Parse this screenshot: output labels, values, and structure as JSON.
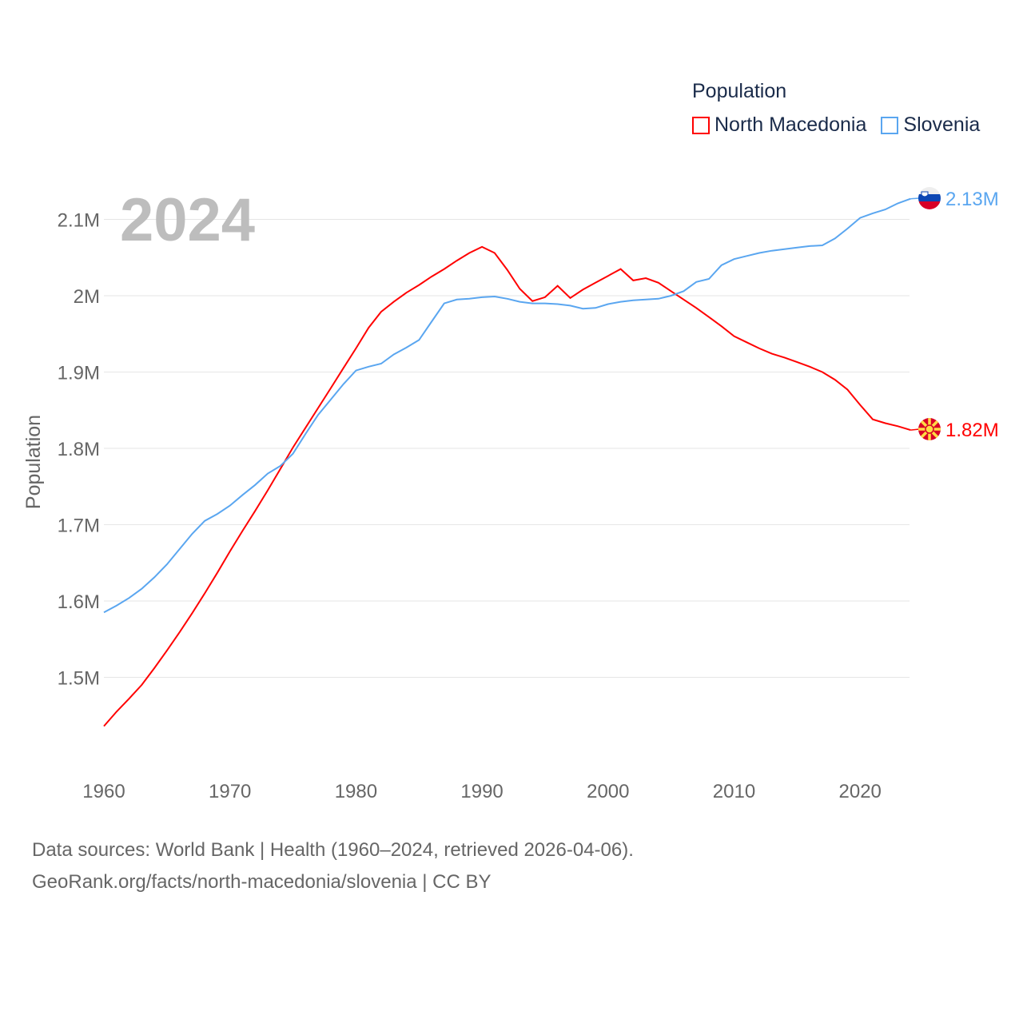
{
  "chart_data": {
    "type": "line",
    "title": "Population",
    "xlabel": "",
    "ylabel": "Population",
    "xlim": [
      1960,
      2024
    ],
    "ylim": [
      1.4,
      2.15
    ],
    "y_unit": "millions",
    "grid": true,
    "legend_position": "top-right",
    "x_ticks": [
      1960,
      1970,
      1980,
      1990,
      2000,
      2010,
      2020
    ],
    "y_ticks": [
      1.5,
      1.6,
      1.7,
      1.8,
      1.9,
      2.0,
      2.1
    ],
    "y_tick_labels": [
      "1.5M",
      "1.6M",
      "1.7M",
      "1.8M",
      "1.9M",
      "2M",
      "2.1M"
    ],
    "current_year_label": "2024",
    "x": [
      1960,
      1961,
      1962,
      1963,
      1964,
      1965,
      1966,
      1967,
      1968,
      1969,
      1970,
      1971,
      1972,
      1973,
      1974,
      1975,
      1976,
      1977,
      1978,
      1979,
      1980,
      1981,
      1982,
      1983,
      1984,
      1985,
      1986,
      1987,
      1988,
      1989,
      1990,
      1991,
      1992,
      1993,
      1994,
      1995,
      1996,
      1997,
      1998,
      1999,
      2000,
      2001,
      2002,
      2003,
      2004,
      2005,
      2006,
      2007,
      2008,
      2009,
      2010,
      2011,
      2012,
      2013,
      2014,
      2015,
      2016,
      2017,
      2018,
      2019,
      2020,
      2021,
      2022,
      2023,
      2024
    ],
    "series": [
      {
        "name": "North Macedonia",
        "color": "#ff0000",
        "end_label": "1.82M",
        "values": [
          1.436,
          1.455,
          1.472,
          1.49,
          1.512,
          1.535,
          1.559,
          1.584,
          1.61,
          1.637,
          1.665,
          1.692,
          1.718,
          1.745,
          1.773,
          1.801,
          1.827,
          1.853,
          1.879,
          1.905,
          1.931,
          1.958,
          1.979,
          1.992,
          2.004,
          2.014,
          2.025,
          2.035,
          2.046,
          2.056,
          2.064,
          2.056,
          2.034,
          2.009,
          1.993,
          1.998,
          2.013,
          1.997,
          2.008,
          2.017,
          2.026,
          2.035,
          2.02,
          2.023,
          2.017,
          2.006,
          1.995,
          1.984,
          1.972,
          1.96,
          1.947,
          1.939,
          1.931,
          1.924,
          1.919,
          1.913,
          1.907,
          1.9,
          1.89,
          1.877,
          1.857,
          1.838,
          1.833,
          1.829,
          1.824
        ]
      },
      {
        "name": "Slovenia",
        "color": "#5aa6f0",
        "end_label": "2.13M",
        "values": [
          1.585,
          1.594,
          1.604,
          1.616,
          1.631,
          1.648,
          1.668,
          1.688,
          1.705,
          1.714,
          1.725,
          1.739,
          1.752,
          1.767,
          1.777,
          1.793,
          1.819,
          1.844,
          1.864,
          1.884,
          1.902,
          1.907,
          1.911,
          1.923,
          1.932,
          1.942,
          1.966,
          1.99,
          1.995,
          1.996,
          1.998,
          1.999,
          1.996,
          1.992,
          1.99,
          1.99,
          1.989,
          1.987,
          1.983,
          1.984,
          1.989,
          1.992,
          1.994,
          1.995,
          1.996,
          2.0,
          2.006,
          2.018,
          2.022,
          2.04,
          2.048,
          2.052,
          2.056,
          2.059,
          2.061,
          2.063,
          2.065,
          2.066,
          2.075,
          2.088,
          2.102,
          2.108,
          2.113,
          2.121,
          2.127
        ]
      }
    ]
  },
  "footer": {
    "line1": "Data sources: World Bank | Health (1960–2024, retrieved 2026-04-06).",
    "line2": "GeoRank.org/facts/north-macedonia/slovenia | CC BY"
  }
}
